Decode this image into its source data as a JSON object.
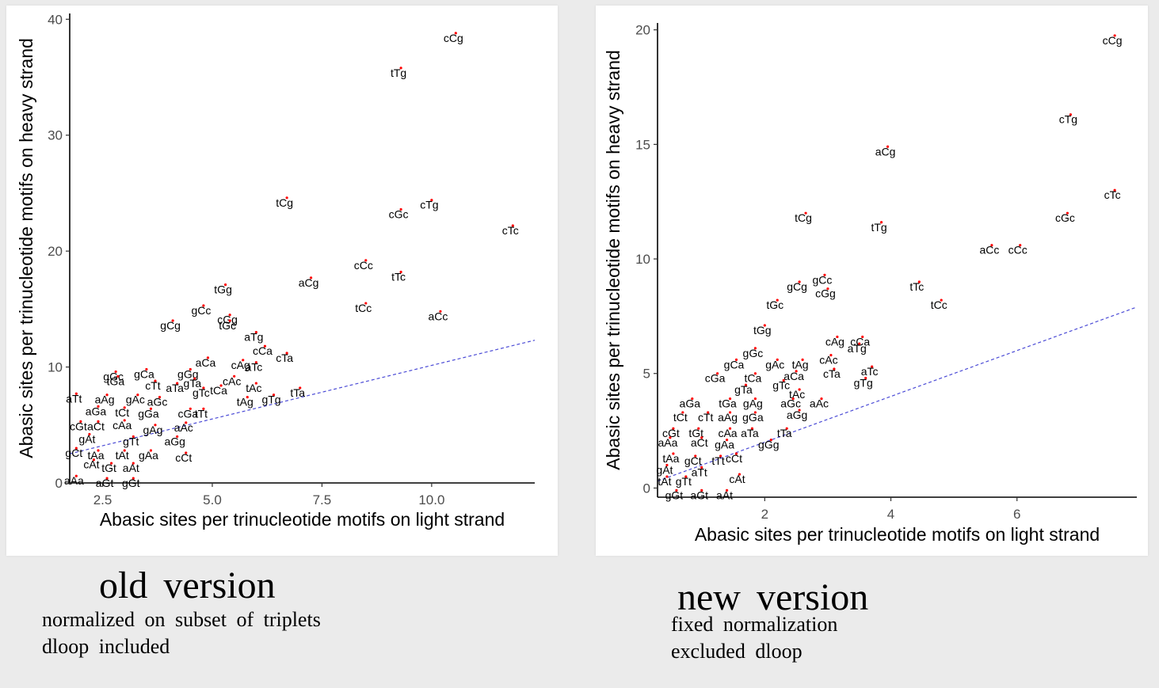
{
  "chart_data": [
    {
      "type": "scatter",
      "xlabel": "Abasic sites per trinucleotide motifs on light strand",
      "ylabel": "Abasic sites per trinucleotide motifs on heavy strand",
      "xlim": [
        1.75,
        12.35
      ],
      "ylim": [
        0,
        40.5
      ],
      "xticks": [
        2.5,
        5.0,
        7.5,
        10.0
      ],
      "xtick_labels": [
        "2.5",
        "5.0",
        "7.5",
        "10.0"
      ],
      "yticks": [
        0,
        10,
        20,
        30,
        40
      ],
      "ytick_labels": [
        "0",
        "10",
        "20",
        "30",
        "40"
      ],
      "reference_line": {
        "slope": 0.924,
        "intercept": 0.9
      },
      "point_color": "#ff0000",
      "line_color": "#4b4bd6",
      "points": [
        {
          "label": "cCg",
          "x": 10.55,
          "y": 38.8
        },
        {
          "label": "tTg",
          "x": 9.3,
          "y": 35.8
        },
        {
          "label": "tCg",
          "x": 6.7,
          "y": 24.6
        },
        {
          "label": "cTg",
          "x": 10.0,
          "y": 24.4
        },
        {
          "label": "cGc",
          "x": 9.3,
          "y": 23.6
        },
        {
          "label": "cTc",
          "x": 11.85,
          "y": 22.2
        },
        {
          "label": "cCc",
          "x": 8.5,
          "y": 19.2
        },
        {
          "label": "aCg",
          "x": 7.25,
          "y": 17.7
        },
        {
          "label": "tTc",
          "x": 9.3,
          "y": 18.2
        },
        {
          "label": "tGg",
          "x": 5.3,
          "y": 17.1
        },
        {
          "label": "cGg",
          "x": 5.4,
          "y": 14.5
        },
        {
          "label": "gCc",
          "x": 4.8,
          "y": 15.3
        },
        {
          "label": "tCc",
          "x": 8.5,
          "y": 15.5
        },
        {
          "label": "aCc",
          "x": 10.2,
          "y": 14.8
        },
        {
          "label": "gCg",
          "x": 4.1,
          "y": 14.0
        },
        {
          "label": "tGc",
          "x": 5.4,
          "y": 14.0
        },
        {
          "label": "aTg",
          "x": 6.0,
          "y": 13.0
        },
        {
          "label": "cCa",
          "x": 6.2,
          "y": 11.8
        },
        {
          "label": "cTa",
          "x": 6.7,
          "y": 11.2
        },
        {
          "label": "aCa",
          "x": 4.9,
          "y": 10.8
        },
        {
          "label": "cAg",
          "x": 5.7,
          "y": 10.6
        },
        {
          "label": "aTc",
          "x": 6.0,
          "y": 10.4
        },
        {
          "label": "gGc",
          "x": 2.8,
          "y": 9.6
        },
        {
          "label": "gCa",
          "x": 3.5,
          "y": 9.8
        },
        {
          "label": "gGg",
          "x": 4.5,
          "y": 9.8
        },
        {
          "label": "gTa",
          "x": 4.6,
          "y": 9.0
        },
        {
          "label": "cAc",
          "x": 5.5,
          "y": 9.2
        },
        {
          "label": "tGa",
          "x": 2.85,
          "y": 9.2
        },
        {
          "label": "cTt",
          "x": 3.7,
          "y": 8.8
        },
        {
          "label": "aTa",
          "x": 4.2,
          "y": 8.6
        },
        {
          "label": "tAc",
          "x": 6.0,
          "y": 8.6
        },
        {
          "label": "tTa",
          "x": 7.0,
          "y": 8.2
        },
        {
          "label": "gTc",
          "x": 4.8,
          "y": 8.2
        },
        {
          "label": "tCa",
          "x": 5.2,
          "y": 8.4
        },
        {
          "label": "aTt",
          "x": 1.9,
          "y": 7.7
        },
        {
          "label": "aAg",
          "x": 2.6,
          "y": 7.6
        },
        {
          "label": "gAc",
          "x": 3.3,
          "y": 7.6
        },
        {
          "label": "aGc",
          "x": 3.8,
          "y": 7.4
        },
        {
          "label": "tAg",
          "x": 5.8,
          "y": 7.4
        },
        {
          "label": "gTg",
          "x": 6.4,
          "y": 7.6
        },
        {
          "label": "aGa",
          "x": 2.4,
          "y": 6.6
        },
        {
          "label": "tCt",
          "x": 3.0,
          "y": 6.5
        },
        {
          "label": "gGa",
          "x": 3.6,
          "y": 6.4
        },
        {
          "label": "cGa",
          "x": 4.5,
          "y": 6.4
        },
        {
          "label": "tTt",
          "x": 4.8,
          "y": 6.4
        },
        {
          "label": "cGt",
          "x": 2.0,
          "y": 5.3
        },
        {
          "label": "aCt",
          "x": 2.4,
          "y": 5.3
        },
        {
          "label": "cAa",
          "x": 3.0,
          "y": 5.4
        },
        {
          "label": "gAg",
          "x": 3.7,
          "y": 5.0
        },
        {
          "label": "aAc",
          "x": 4.4,
          "y": 5.2
        },
        {
          "label": "gAt",
          "x": 2.2,
          "y": 4.2
        },
        {
          "label": "gTt",
          "x": 3.2,
          "y": 4.0
        },
        {
          "label": "aGg",
          "x": 4.2,
          "y": 4.0
        },
        {
          "label": "gCt",
          "x": 1.9,
          "y": 3.0
        },
        {
          "label": "tAa",
          "x": 2.4,
          "y": 2.8
        },
        {
          "label": "tAt",
          "x": 3.0,
          "y": 2.8
        },
        {
          "label": "gAa",
          "x": 3.6,
          "y": 2.8
        },
        {
          "label": "cCt",
          "x": 4.4,
          "y": 2.6
        },
        {
          "label": "cAt",
          "x": 2.3,
          "y": 2.0
        },
        {
          "label": "tGt",
          "x": 2.7,
          "y": 1.7
        },
        {
          "label": "aAt",
          "x": 3.2,
          "y": 1.7
        },
        {
          "label": "aAa",
          "x": 1.9,
          "y": 0.6
        },
        {
          "label": "aGt",
          "x": 2.6,
          "y": 0.4
        },
        {
          "label": "gGt",
          "x": 3.2,
          "y": 0.4
        }
      ]
    },
    {
      "type": "scatter",
      "xlabel": "Abasic sites per trinucleotide motifs on light strand",
      "ylabel": "Abasic sites per trinucleotide motifs on heavy strand",
      "xlim": [
        0.3,
        7.9
      ],
      "ylim": [
        -0.4,
        20.3
      ],
      "xticks": [
        2,
        4,
        6
      ],
      "xtick_labels": [
        "2",
        "4",
        "6"
      ],
      "yticks": [
        0,
        5,
        10,
        15,
        20
      ],
      "ytick_labels": [
        "0",
        "5",
        "10",
        "15",
        "20"
      ],
      "reference_line": {
        "slope": 1.0,
        "intercept": 0.0
      },
      "point_color": "#ff0000",
      "line_color": "#4b4bd6",
      "points": [
        {
          "label": "cCg",
          "x": 7.55,
          "y": 19.75
        },
        {
          "label": "cTg",
          "x": 6.85,
          "y": 16.3
        },
        {
          "label": "aCg",
          "x": 3.95,
          "y": 14.9
        },
        {
          "label": "cTc",
          "x": 7.55,
          "y": 13.0
        },
        {
          "label": "cGc",
          "x": 6.8,
          "y": 12.0
        },
        {
          "label": "tCg",
          "x": 2.65,
          "y": 12.0
        },
        {
          "label": "tTg",
          "x": 3.85,
          "y": 11.6
        },
        {
          "label": "cCc",
          "x": 6.05,
          "y": 10.6
        },
        {
          "label": "aCc",
          "x": 5.6,
          "y": 10.6
        },
        {
          "label": "gCc",
          "x": 2.95,
          "y": 9.3
        },
        {
          "label": "gCg",
          "x": 2.55,
          "y": 9.0
        },
        {
          "label": "tTc",
          "x": 4.45,
          "y": 9.0
        },
        {
          "label": "cGg",
          "x": 3.0,
          "y": 8.7
        },
        {
          "label": "tCc",
          "x": 4.8,
          "y": 8.2
        },
        {
          "label": "tGc",
          "x": 2.2,
          "y": 8.2
        },
        {
          "label": "tGg",
          "x": 2.0,
          "y": 7.1
        },
        {
          "label": "cAg",
          "x": 3.15,
          "y": 6.6
        },
        {
          "label": "cCa",
          "x": 3.55,
          "y": 6.6
        },
        {
          "label": "gGc",
          "x": 1.85,
          "y": 6.1
        },
        {
          "label": "aTg",
          "x": 3.5,
          "y": 6.3
        },
        {
          "label": "cAc",
          "x": 3.05,
          "y": 5.8
        },
        {
          "label": "gCa",
          "x": 1.55,
          "y": 5.6
        },
        {
          "label": "gAc",
          "x": 2.2,
          "y": 5.6
        },
        {
          "label": "tAg",
          "x": 2.6,
          "y": 5.6
        },
        {
          "label": "cTa",
          "x": 3.1,
          "y": 5.2
        },
        {
          "label": "aTc",
          "x": 3.7,
          "y": 5.3
        },
        {
          "label": "cGa",
          "x": 1.25,
          "y": 5.0
        },
        {
          "label": "tCa",
          "x": 1.85,
          "y": 5.0
        },
        {
          "label": "aCa",
          "x": 2.5,
          "y": 5.1
        },
        {
          "label": "gTa",
          "x": 1.7,
          "y": 4.5
        },
        {
          "label": "gTc",
          "x": 2.3,
          "y": 4.7
        },
        {
          "label": "tAc",
          "x": 2.55,
          "y": 4.3
        },
        {
          "label": "gTg",
          "x": 3.6,
          "y": 4.8
        },
        {
          "label": "aGa",
          "x": 0.85,
          "y": 3.9
        },
        {
          "label": "tGa",
          "x": 1.45,
          "y": 3.9
        },
        {
          "label": "gAg",
          "x": 1.85,
          "y": 3.9
        },
        {
          "label": "aGc",
          "x": 2.45,
          "y": 3.9
        },
        {
          "label": "aAc",
          "x": 2.9,
          "y": 3.9
        },
        {
          "label": "tCt",
          "x": 0.7,
          "y": 3.3
        },
        {
          "label": "cTt",
          "x": 1.1,
          "y": 3.3
        },
        {
          "label": "aAg",
          "x": 1.45,
          "y": 3.3
        },
        {
          "label": "gGa",
          "x": 1.85,
          "y": 3.3
        },
        {
          "label": "aGg",
          "x": 2.55,
          "y": 3.4
        },
        {
          "label": "cGt",
          "x": 0.55,
          "y": 2.6
        },
        {
          "label": "tGt",
          "x": 0.95,
          "y": 2.6
        },
        {
          "label": "cAa",
          "x": 1.45,
          "y": 2.6
        },
        {
          "label": "aTa",
          "x": 1.8,
          "y": 2.6
        },
        {
          "label": "tTa",
          "x": 2.35,
          "y": 2.6
        },
        {
          "label": "aAa",
          "x": 0.5,
          "y": 2.2
        },
        {
          "label": "aCt",
          "x": 1.0,
          "y": 2.2
        },
        {
          "label": "gAa",
          "x": 1.4,
          "y": 2.1
        },
        {
          "label": "gGg",
          "x": 2.1,
          "y": 2.1
        },
        {
          "label": "tAa",
          "x": 0.55,
          "y": 1.5
        },
        {
          "label": "gCt",
          "x": 0.9,
          "y": 1.4
        },
        {
          "label": "tTt",
          "x": 1.3,
          "y": 1.4
        },
        {
          "label": "cCt",
          "x": 1.55,
          "y": 1.5
        },
        {
          "label": "gAt",
          "x": 0.45,
          "y": 1.0
        },
        {
          "label": "aTt",
          "x": 1.0,
          "y": 0.9
        },
        {
          "label": "cAt",
          "x": 1.6,
          "y": 0.6
        },
        {
          "label": "tAt",
          "x": 0.45,
          "y": 0.5
        },
        {
          "label": "gTt",
          "x": 0.75,
          "y": 0.5
        },
        {
          "label": "gGt",
          "x": 0.6,
          "y": -0.1
        },
        {
          "label": "aGt",
          "x": 1.0,
          "y": -0.1
        },
        {
          "label": "aAt",
          "x": 1.4,
          "y": -0.1
        }
      ]
    }
  ],
  "captions": {
    "old": {
      "title": "old  version",
      "line1": "normalized  on  subset  of  triplets",
      "line2": "dloop  included"
    },
    "new": {
      "title": "new  version",
      "line1": "fixed  normalization",
      "line2": "excluded  dloop"
    }
  }
}
